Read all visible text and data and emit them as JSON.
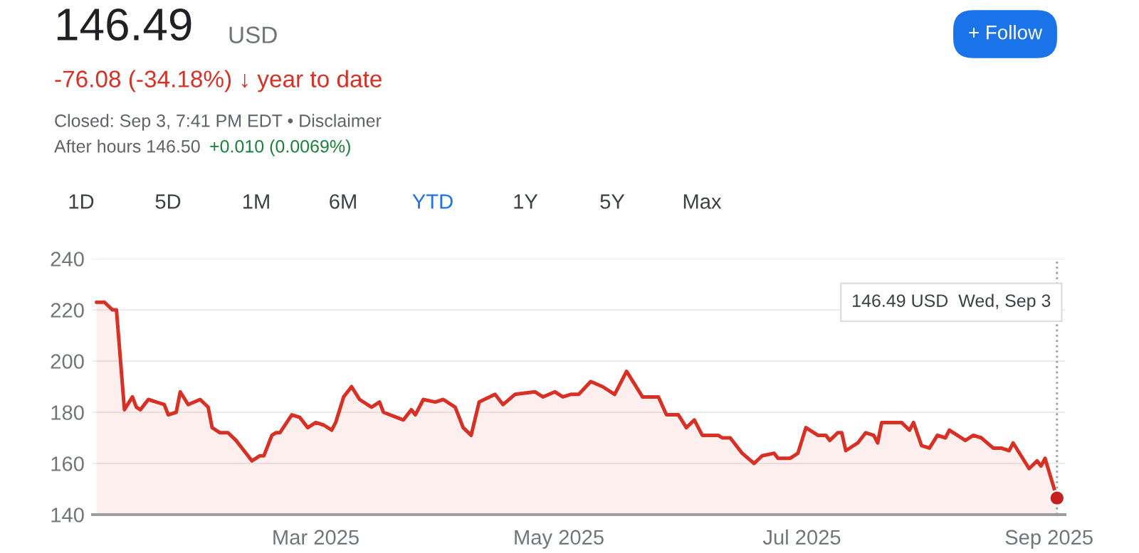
{
  "chart_data": {
    "type": "area",
    "annotations": [
      "146.49",
      "USD",
      "-76.08 (-34.18%) ↓ year to date",
      "Closed: Sep 3, 7:41 PM EDT • Disclaimer",
      "After hours 146.50",
      "+0.010 (0.0069%)",
      "+ Follow",
      "1D",
      "5D",
      "1M",
      "6M",
      "YTD",
      "1Y",
      "5Y",
      "Max"
    ],
    "series": [
      {
        "color": "#d93025",
        "x": [
          "2025-01-05",
          "2025-01-07",
          "2025-01-09",
          "2025-01-10",
          "2025-01-12",
          "2025-01-14",
          "2025-01-15",
          "2025-01-16",
          "2025-01-18",
          "2025-01-20",
          "2025-01-22",
          "2025-01-23",
          "2025-01-25",
          "2025-01-26",
          "2025-01-28",
          "2025-01-31",
          "2025-02-02",
          "2025-02-03",
          "2025-02-05",
          "2025-02-07",
          "2025-02-09",
          "2025-02-11",
          "2025-02-13",
          "2025-02-15",
          "2025-02-16",
          "2025-02-18",
          "2025-02-19",
          "2025-02-20",
          "2025-02-23",
          "2025-02-25",
          "2025-02-27",
          "2025-03-01",
          "2025-03-03",
          "2025-03-05",
          "2025-03-06",
          "2025-03-08",
          "2025-03-10",
          "2025-03-12",
          "2025-03-15",
          "2025-03-17",
          "2025-03-18",
          "2025-03-23",
          "2025-03-25",
          "2025-03-26",
          "2025-03-28",
          "2025-03-31",
          "2025-04-02",
          "2025-04-05",
          "2025-04-07",
          "2025-04-09",
          "2025-04-11",
          "2025-04-15",
          "2025-04-17",
          "2025-04-20",
          "2025-04-25",
          "2025-04-27",
          "2025-04-30",
          "2025-05-02",
          "2025-05-04",
          "2025-05-06",
          "2025-05-09",
          "2025-05-12",
          "2025-05-15",
          "2025-05-18",
          "2025-05-22",
          "2025-05-25",
          "2025-05-26",
          "2025-05-28",
          "2025-05-31",
          "2025-06-02",
          "2025-06-04",
          "2025-06-06",
          "2025-06-10",
          "2025-06-11",
          "2025-06-13",
          "2025-06-16",
          "2025-06-19",
          "2025-06-21",
          "2025-06-24",
          "2025-06-25",
          "2025-06-28",
          "2025-06-30",
          "2025-07-02",
          "2025-07-05",
          "2025-07-07",
          "2025-07-08",
          "2025-07-10",
          "2025-07-11",
          "2025-07-12",
          "2025-07-15",
          "2025-07-17",
          "2025-07-19",
          "2025-07-20",
          "2025-07-21",
          "2025-07-23",
          "2025-07-26",
          "2025-07-28",
          "2025-07-29",
          "2025-07-31",
          "2025-08-02",
          "2025-08-04",
          "2025-08-06",
          "2025-08-07",
          "2025-08-11",
          "2025-08-13",
          "2025-08-15",
          "2025-08-18",
          "2025-08-20",
          "2025-08-22",
          "2025-08-23",
          "2025-08-27",
          "2025-08-29",
          "2025-08-30",
          "2025-08-31",
          "2025-09-03"
        ],
        "values": [
          223,
          223,
          220,
          220,
          181,
          186,
          182,
          181,
          185,
          184,
          183,
          179,
          180,
          188,
          183,
          185,
          182,
          174,
          172,
          172,
          169,
          165,
          161,
          163,
          163,
          171,
          172,
          172,
          179,
          178,
          174,
          176,
          175,
          173,
          176,
          186,
          190,
          185,
          182,
          184,
          180,
          177,
          181,
          179,
          185,
          184,
          185,
          182,
          174,
          171,
          184,
          187,
          183,
          187,
          188,
          186,
          188,
          186,
          187,
          187,
          192,
          190,
          187,
          196,
          186,
          186,
          186,
          179,
          179,
          174,
          177,
          171,
          171,
          170,
          170,
          164,
          160,
          163,
          164,
          162,
          162,
          164,
          174,
          171,
          171,
          169,
          172,
          172,
          165,
          168,
          172,
          171,
          168,
          176,
          176,
          176,
          173,
          176,
          167,
          166,
          171,
          170,
          173,
          169,
          171,
          170,
          166,
          166,
          165,
          168,
          158,
          161,
          159,
          162,
          146.49
        ]
      },
      {
        "type": "scatter",
        "color": "#c5221f",
        "marker": "circle",
        "x": [
          "2025-09-03"
        ],
        "values": [
          146.49
        ]
      }
    ],
    "xlim": [
      "2025-01-04",
      "2025-09-05"
    ],
    "xticks": [
      {
        "value": "2025-03-01",
        "label": "Mar 2025"
      },
      {
        "value": "2025-05-01",
        "label": "May 2025"
      },
      {
        "value": "2025-07-01",
        "label": "Jul 2025"
      },
      {
        "value": "2025-09-01",
        "label": "Sep 2025"
      }
    ],
    "ylim": [
      140,
      240
    ],
    "yticks": [
      140,
      160,
      180,
      200,
      220,
      240
    ],
    "grid": "y",
    "ref_lines": [
      {
        "axis": "x",
        "value": "2025-09-03",
        "label": "146.49 USD  Wed, Sep 3",
        "color": "#9aa0a6",
        "line_style": "dotted"
      }
    ]
  }
}
